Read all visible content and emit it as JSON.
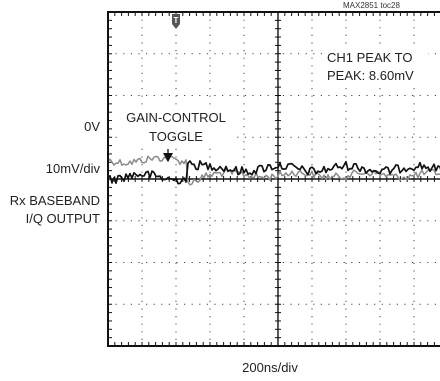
{
  "chart_data": {
    "type": "line",
    "title": "",
    "xlabel": "200ns/div",
    "figure_id": "MAX2851 toc28",
    "left_labels": [
      "0V",
      "10mV/div",
      "Rx BASEBAND",
      "I/Q OUTPUT"
    ],
    "annotations": {
      "event": [
        "GAIN-CONTROL",
        "TOGGLE"
      ],
      "measurement": [
        "CH1 PEAK TO",
        "PEAK: 8.60mV"
      ]
    },
    "grid": true,
    "divisions": {
      "x": 10,
      "y": 8
    },
    "trigger_marker": "T",
    "event_time_div": 2.3,
    "series": [
      {
        "color": "#8a8a8a",
        "level_before_div": 3.55,
        "level_after_div": 3.9,
        "ripple_div": 0.09
      },
      {
        "color": "#111111",
        "level_before_div": 3.95,
        "level_after_div": 3.75,
        "ripple_div": 0.11
      }
    ]
  }
}
